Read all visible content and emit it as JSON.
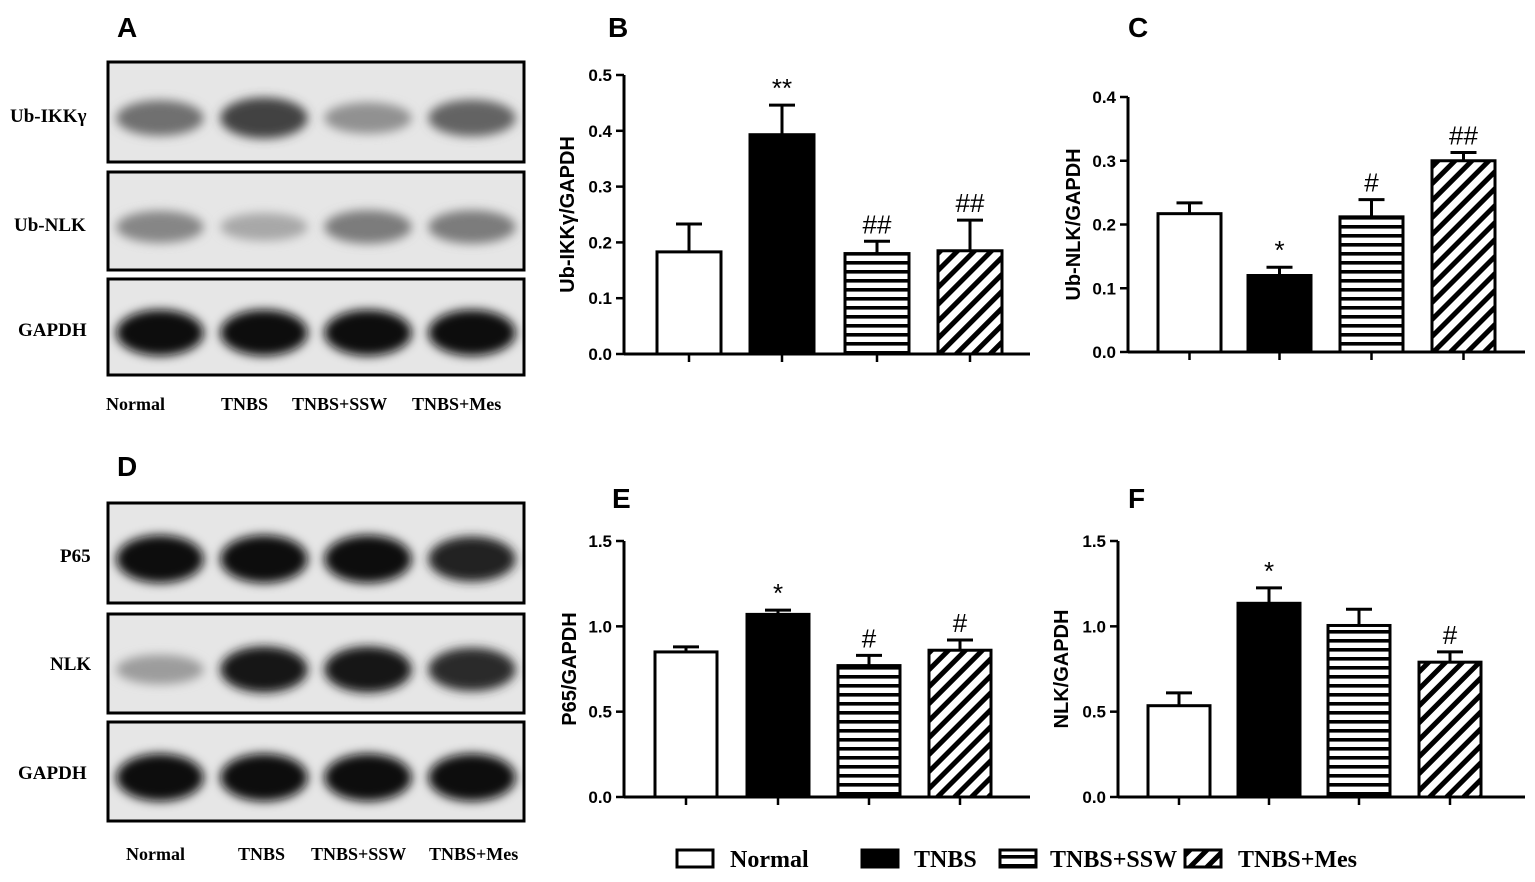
{
  "panels": {
    "A": "A",
    "B": "B",
    "C": "C",
    "D": "D",
    "E": "E",
    "F": "F"
  },
  "blots": [
    {
      "panel": "A",
      "rows": [
        "Ub-IKKγ",
        "Ub-NLK",
        "GAPDH"
      ],
      "lanes": [
        "Normal",
        "TNBS",
        "TNBS+SSW",
        "TNBS+Mes"
      ],
      "band_intensity": [
        [
          0.55,
          0.75,
          0.4,
          0.6
        ],
        [
          0.45,
          0.3,
          0.5,
          0.5
        ],
        [
          1.0,
          1.0,
          1.0,
          1.0
        ]
      ]
    },
    {
      "panel": "D",
      "rows": [
        "P65",
        "NLK",
        "GAPDH"
      ],
      "lanes": [
        "Normal",
        "TNBS",
        "TNBS+SSW",
        "TNBS+Mes"
      ],
      "band_intensity": [
        [
          1.0,
          1.0,
          1.0,
          0.9
        ],
        [
          0.35,
          0.95,
          0.95,
          0.85
        ],
        [
          1.0,
          1.0,
          1.0,
          1.0
        ]
      ]
    }
  ],
  "chart_data": [
    {
      "panel": "B",
      "type": "bar",
      "categories": [
        "Normal",
        "TNBS",
        "TNBS+SSW",
        "TNBS+Mes"
      ],
      "values": [
        0.183,
        0.393,
        0.18,
        0.185
      ],
      "errors": [
        0.05,
        0.053,
        0.022,
        0.055
      ],
      "sig": [
        "",
        "**",
        "##",
        "##"
      ],
      "ylabel": "Ub-IKKγ/GAPDH",
      "ylim": [
        0,
        0.5
      ],
      "yticks": [
        "0.0",
        "0.1",
        "0.2",
        "0.3",
        "0.4",
        "0.5"
      ]
    },
    {
      "panel": "C",
      "type": "bar",
      "categories": [
        "Normal",
        "TNBS",
        "TNBS+SSW",
        "TNBS+Mes"
      ],
      "values": [
        0.217,
        0.12,
        0.212,
        0.3
      ],
      "errors": [
        0.017,
        0.013,
        0.027,
        0.013
      ],
      "sig": [
        "",
        "*",
        "#",
        "##"
      ],
      "ylabel": "Ub-NLK/GAPDH",
      "ylim": [
        0,
        0.4
      ],
      "yticks": [
        "0.0",
        "0.1",
        "0.2",
        "0.3",
        "0.4"
      ]
    },
    {
      "panel": "E",
      "type": "bar",
      "categories": [
        "Normal",
        "TNBS",
        "TNBS+SSW",
        "TNBS+Mes"
      ],
      "values": [
        0.85,
        1.07,
        0.77,
        0.86
      ],
      "errors": [
        0.03,
        0.025,
        0.06,
        0.06
      ],
      "sig": [
        "",
        "*",
        "#",
        "#"
      ],
      "ylabel": "P65/GAPDH",
      "ylim": [
        0,
        1.5
      ],
      "yticks": [
        "0.0",
        "0.5",
        "1.0",
        "1.5"
      ]
    },
    {
      "panel": "F",
      "type": "bar",
      "categories": [
        "Normal",
        "TNBS",
        "TNBS+SSW",
        "TNBS+Mes"
      ],
      "values": [
        0.535,
        1.135,
        1.005,
        0.79
      ],
      "errors": [
        0.075,
        0.09,
        0.095,
        0.06
      ],
      "sig": [
        "",
        "*",
        "",
        "#"
      ],
      "ylabel": "NLK/GAPDH",
      "ylim": [
        0,
        1.5
      ],
      "yticks": [
        "0.0",
        "0.5",
        "1.0",
        "1.5"
      ]
    }
  ],
  "legend": {
    "placement": "bottom",
    "items": [
      {
        "label": "Normal",
        "pattern": "open"
      },
      {
        "label": "TNBS",
        "pattern": "solid"
      },
      {
        "label": "TNBS+SSW",
        "pattern": "horizontal-lines"
      },
      {
        "label": "TNBS+Mes",
        "pattern": "diagonal-lines"
      }
    ]
  },
  "colors": {
    "ink": "#000000",
    "background": "#ffffff",
    "blot_bg": "#e6e6e6"
  }
}
